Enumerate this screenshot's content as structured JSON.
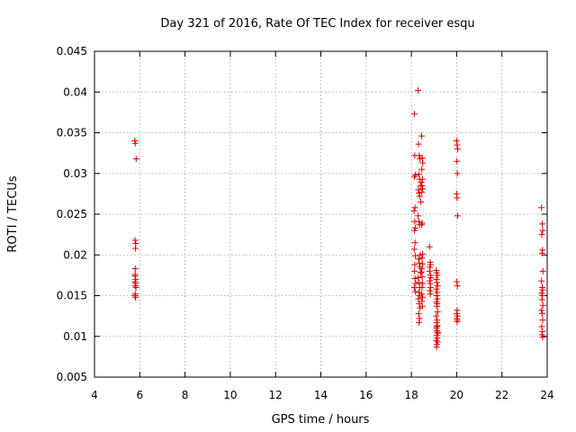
{
  "chart_data": {
    "type": "scatter",
    "title": "Day 321 of 2016, Rate Of TEC Index for receiver esqu",
    "xlabel": "GPS time / hours",
    "ylabel": "ROTI / TECUs",
    "xlim": [
      4,
      24
    ],
    "ylim": [
      0.005,
      0.045
    ],
    "xticks": [
      4,
      6,
      8,
      10,
      12,
      14,
      16,
      18,
      20,
      22,
      24
    ],
    "yticks": [
      0.005,
      0.01,
      0.015,
      0.02,
      0.025,
      0.03,
      0.035,
      0.04,
      0.045
    ],
    "xtick_labels": [
      "4",
      "6",
      "8",
      "10",
      "12",
      "14",
      "16",
      "18",
      "20",
      "22",
      "24"
    ],
    "ytick_labels": [
      "0.005",
      "0.01",
      "0.015",
      "0.02",
      "0.025",
      "0.03",
      "0.035",
      "0.04",
      "0.045"
    ],
    "grid": true,
    "marker": "+",
    "color": "#e00000",
    "series": [
      {
        "name": "ROTI",
        "x": [
          5.78,
          5.8,
          5.84,
          5.79,
          5.82,
          5.81,
          5.8,
          5.79,
          5.8,
          5.82,
          5.79,
          5.81,
          5.8,
          5.83,
          5.79,
          5.81,
          5.8,
          18.13,
          18.15,
          18.17,
          18.14,
          18.16,
          18.12,
          18.15,
          18.18,
          18.14,
          18.16,
          18.13,
          18.17,
          18.15,
          18.14,
          18.16,
          18.19,
          18.13,
          18.17,
          18.3,
          18.32,
          18.35,
          18.38,
          18.33,
          18.36,
          18.4,
          18.31,
          18.34,
          18.37,
          18.42,
          18.3,
          18.33,
          18.36,
          18.39,
          18.32,
          18.35,
          18.38,
          18.41,
          18.3,
          18.34,
          18.37,
          18.33,
          18.36,
          18.31,
          18.35,
          18.38,
          18.32,
          18.36,
          18.34,
          18.45,
          18.48,
          18.5,
          18.46,
          18.49,
          18.44,
          18.47,
          18.5,
          18.46,
          18.48,
          18.45,
          18.5,
          18.47,
          18.49,
          18.46,
          18.44,
          18.48,
          18.5,
          18.47,
          18.45,
          18.49,
          18.46,
          18.48,
          18.8,
          18.83,
          18.85,
          18.82,
          18.8,
          18.84,
          18.86,
          18.81,
          18.83,
          18.85,
          18.82,
          18.84,
          19.1,
          19.12,
          19.15,
          19.11,
          19.13,
          19.16,
          19.1,
          19.14,
          19.12,
          19.15,
          19.11,
          19.13,
          19.16,
          19.1,
          19.14,
          19.12,
          19.15,
          19.11,
          19.13,
          19.17,
          19.12,
          19.14,
          19.1,
          19.16,
          19.13,
          19.11,
          19.15,
          19.12,
          19.14,
          20.0,
          20.02,
          20.04,
          20.01,
          20.03,
          20.0,
          20.02,
          20.04,
          20.01,
          20.03,
          20.02,
          20.0,
          20.04,
          20.01,
          20.03,
          20.02,
          23.75,
          23.78,
          23.8,
          23.76,
          23.79,
          23.77,
          23.81,
          23.75,
          23.78,
          23.8,
          23.76,
          23.79,
          23.77,
          23.81,
          23.75,
          23.78,
          23.8,
          23.76,
          23.79,
          23.77,
          23.8
        ],
        "y": [
          0.034,
          0.0337,
          0.0318,
          0.0218,
          0.0214,
          0.0208,
          0.0183,
          0.0176,
          0.0174,
          0.017,
          0.0167,
          0.0165,
          0.0162,
          0.016,
          0.015,
          0.0148,
          0.0152,
          0.0373,
          0.0322,
          0.0298,
          0.0296,
          0.0258,
          0.0254,
          0.0241,
          0.0233,
          0.023,
          0.0215,
          0.0207,
          0.0199,
          0.0188,
          0.018,
          0.0171,
          0.0165,
          0.016,
          0.0155,
          0.0402,
          0.0336,
          0.0322,
          0.0318,
          0.0299,
          0.0293,
          0.0285,
          0.028,
          0.0276,
          0.0272,
          0.0265,
          0.0248,
          0.0241,
          0.0237,
          0.02,
          0.0195,
          0.019,
          0.0185,
          0.0178,
          0.0172,
          0.0166,
          0.016,
          0.0154,
          0.015,
          0.0146,
          0.014,
          0.0135,
          0.0128,
          0.0122,
          0.0117,
          0.0346,
          0.0319,
          0.0313,
          0.0305,
          0.0293,
          0.0289,
          0.0285,
          0.0281,
          0.0277,
          0.0239,
          0.0237,
          0.0201,
          0.0196,
          0.0189,
          0.0183,
          0.0179,
          0.0173,
          0.0165,
          0.016,
          0.0152,
          0.0148,
          0.0143,
          0.0137,
          0.021,
          0.0191,
          0.0188,
          0.0185,
          0.018,
          0.0175,
          0.0172,
          0.0168,
          0.0165,
          0.016,
          0.0156,
          0.0152,
          0.0181,
          0.0178,
          0.0175,
          0.017,
          0.0166,
          0.0162,
          0.0158,
          0.0154,
          0.015,
          0.0146,
          0.0142,
          0.0137,
          0.013,
          0.0125,
          0.012,
          0.0117,
          0.0113,
          0.011,
          0.0107,
          0.0104,
          0.0101,
          0.0098,
          0.0095,
          0.0093,
          0.009,
          0.0087,
          0.0105,
          0.0112,
          0.014,
          0.034,
          0.0335,
          0.033,
          0.0315,
          0.03,
          0.0275,
          0.027,
          0.0248,
          0.0167,
          0.0162,
          0.0132,
          0.0128,
          0.0125,
          0.0122,
          0.012,
          0.0118,
          0.0258,
          0.0238,
          0.023,
          0.0225,
          0.0206,
          0.0202,
          0.018,
          0.0168,
          0.016,
          0.0157,
          0.0153,
          0.015,
          0.0145,
          0.0138,
          0.0132,
          0.0128,
          0.012,
          0.0112,
          0.0106,
          0.0102,
          0.0099
        ]
      }
    ]
  }
}
